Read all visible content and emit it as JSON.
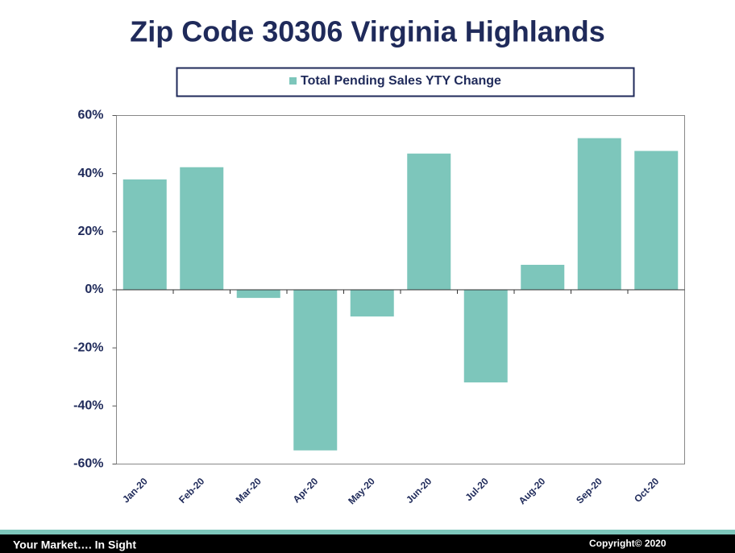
{
  "chart_data": {
    "type": "bar",
    "title": "Zip Code 30306 Virginia Highlands",
    "legend": "Total Pending Sales YTY Change",
    "color": "#7dc6bb",
    "categories": [
      "Jan-20",
      "Feb-20",
      "Mar-20",
      "Apr-20",
      "May-20",
      "Jun-20",
      "Jul-20",
      "Aug-20",
      "Sep-20",
      "Oct-20"
    ],
    "values": [
      38,
      42.2,
      -2.8,
      -55.3,
      -9.2,
      46.9,
      -31.9,
      8.6,
      52.2,
      47.8
    ],
    "ylim": [
      -60,
      60
    ],
    "yticks": [
      {
        "value": -60,
        "label": "-60%"
      },
      {
        "value": -40,
        "label": "-40%"
      },
      {
        "value": -20,
        "label": "-20%"
      },
      {
        "value": 0,
        "label": "0%"
      },
      {
        "value": 20,
        "label": "20%"
      },
      {
        "value": 40,
        "label": "40%"
      },
      {
        "value": 60,
        "label": "60%"
      }
    ],
    "footer": {
      "left": "Your Market…. In Sight",
      "right": "Copyright© 2020"
    }
  }
}
